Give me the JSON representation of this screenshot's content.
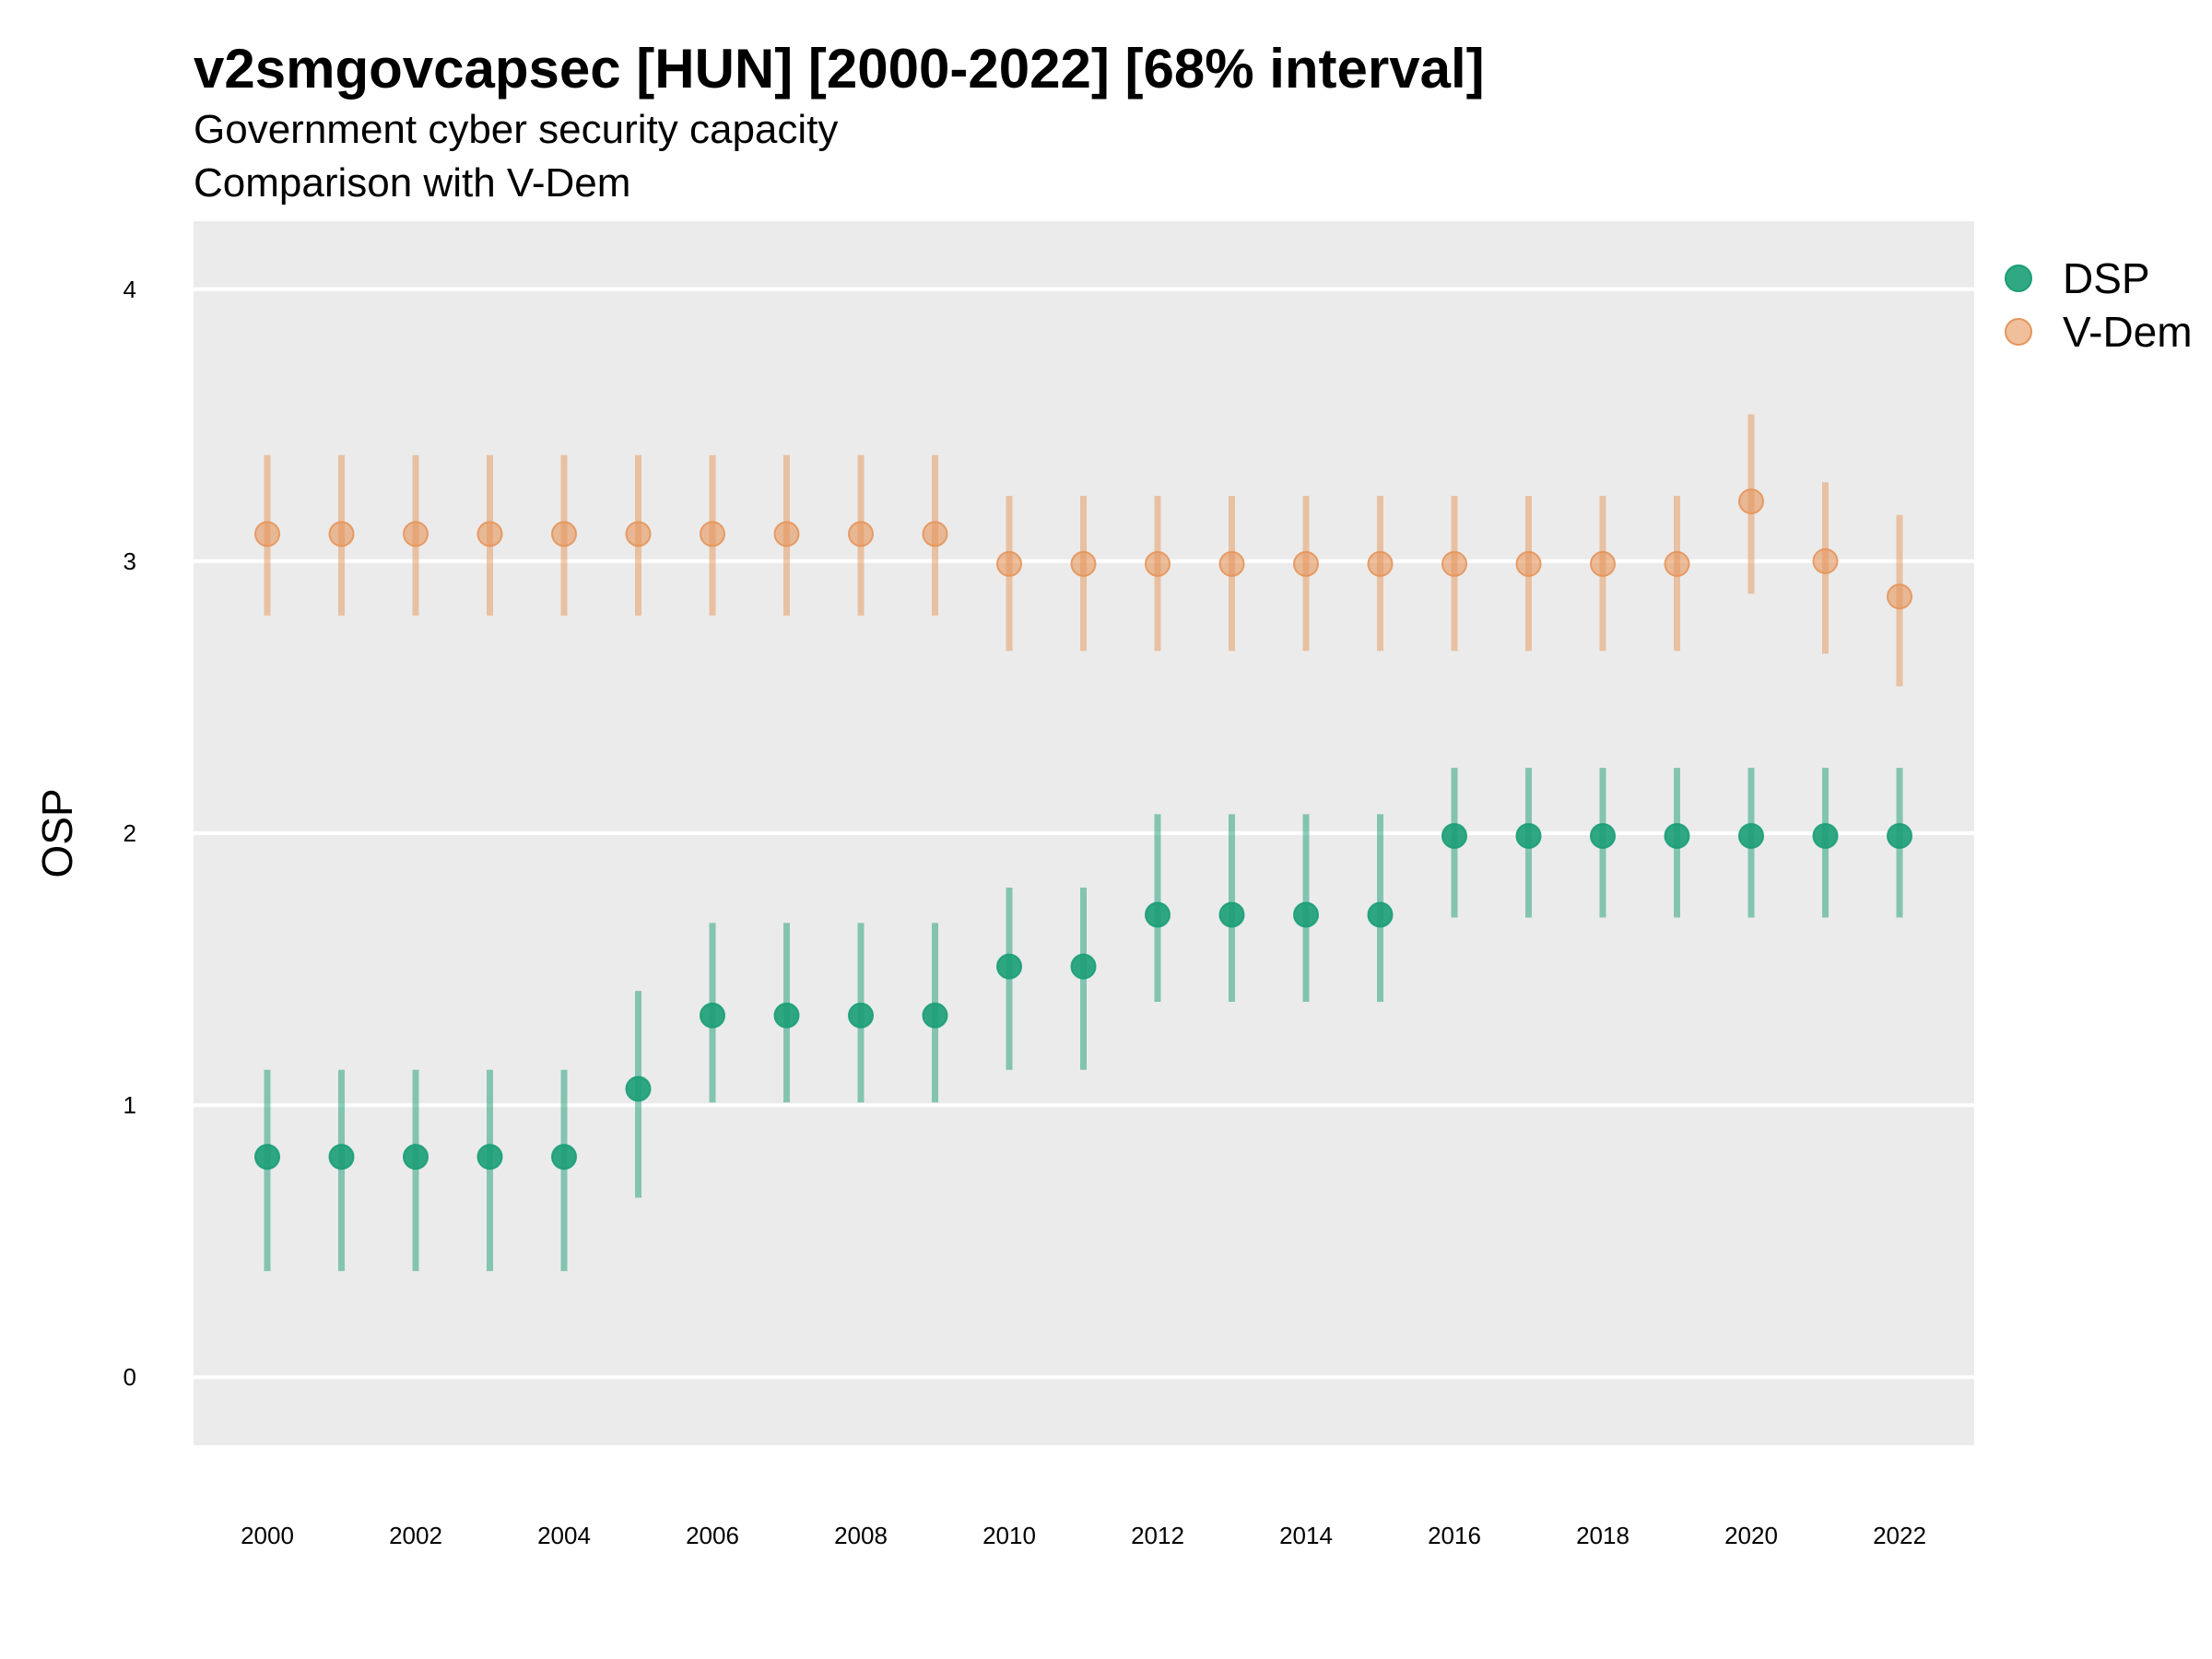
{
  "chart_data": {
    "type": "scatter",
    "title": "v2smgovcapsec [HUN] [2000-2022] [68% interval]",
    "subtitle_lines": [
      "Government cyber security capacity",
      "Comparison with V-Dem"
    ],
    "ylabel": "OSP",
    "xlabel": "",
    "ylim": [
      -0.25,
      4.25
    ],
    "xlim": [
      1999,
      2023
    ],
    "y_ticks": [
      0,
      1,
      2,
      3,
      4
    ],
    "x_ticks": [
      2000,
      2002,
      2004,
      2006,
      2008,
      2010,
      2012,
      2014,
      2016,
      2018,
      2020,
      2022
    ],
    "grid": true,
    "legend_position": "right",
    "x": [
      2000,
      2001,
      2002,
      2003,
      2004,
      2005,
      2006,
      2007,
      2008,
      2009,
      2010,
      2011,
      2012,
      2013,
      2014,
      2015,
      2016,
      2017,
      2018,
      2019,
      2020,
      2021,
      2022
    ],
    "series": [
      {
        "name": "DSP",
        "color": "#1b9e77",
        "values": [
          0.81,
          0.81,
          0.81,
          0.81,
          0.81,
          1.06,
          1.33,
          1.33,
          1.33,
          1.33,
          1.51,
          1.51,
          1.7,
          1.7,
          1.7,
          1.7,
          1.99,
          1.99,
          1.99,
          1.99,
          1.99,
          1.99,
          1.99
        ],
        "lower": [
          0.39,
          0.39,
          0.39,
          0.39,
          0.39,
          0.66,
          1.01,
          1.01,
          1.01,
          1.01,
          1.13,
          1.13,
          1.38,
          1.38,
          1.38,
          1.38,
          1.69,
          1.69,
          1.69,
          1.69,
          1.69,
          1.69,
          1.69
        ],
        "upper": [
          1.13,
          1.13,
          1.13,
          1.13,
          1.13,
          1.42,
          1.67,
          1.67,
          1.67,
          1.67,
          1.8,
          1.8,
          2.07,
          2.07,
          2.07,
          2.07,
          2.24,
          2.24,
          2.24,
          2.24,
          2.24,
          2.24,
          2.24
        ]
      },
      {
        "name": "V-Dem",
        "color": "#e6955a",
        "values": [
          3.1,
          3.1,
          3.1,
          3.1,
          3.1,
          3.1,
          3.1,
          3.1,
          3.1,
          3.1,
          2.99,
          2.99,
          2.99,
          2.99,
          2.99,
          2.99,
          2.99,
          2.99,
          2.99,
          2.99,
          3.22,
          3.0,
          2.87
        ],
        "lower": [
          2.8,
          2.8,
          2.8,
          2.8,
          2.8,
          2.8,
          2.8,
          2.8,
          2.8,
          2.8,
          2.67,
          2.67,
          2.67,
          2.67,
          2.67,
          2.67,
          2.67,
          2.67,
          2.67,
          2.67,
          2.88,
          2.66,
          2.54
        ],
        "upper": [
          3.39,
          3.39,
          3.39,
          3.39,
          3.39,
          3.39,
          3.39,
          3.39,
          3.39,
          3.39,
          3.24,
          3.24,
          3.24,
          3.24,
          3.24,
          3.24,
          3.24,
          3.24,
          3.24,
          3.24,
          3.54,
          3.29,
          3.17
        ]
      }
    ]
  }
}
